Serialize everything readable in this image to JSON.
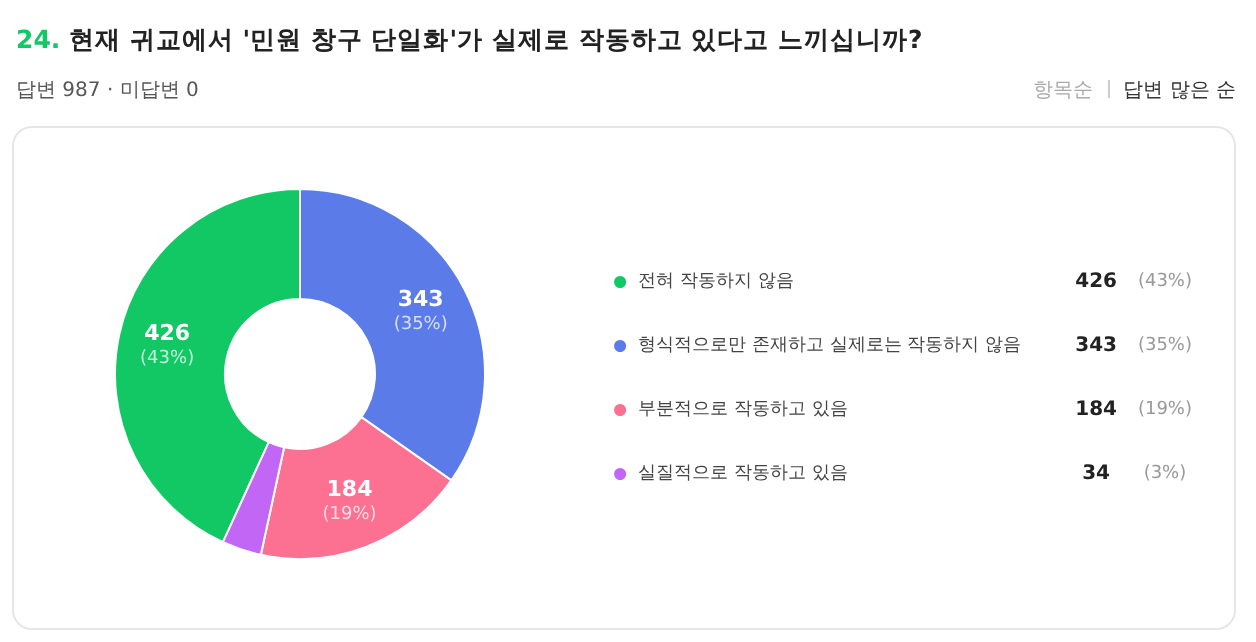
{
  "chart_data": {
    "type": "donut",
    "title": "24. 현재 귀교에서 '민원 창구 단일화'가 실제로 작동하고 있다고 느끼십니까?",
    "subtitle": "답변 987 · 미답변 0",
    "annotations": [
      "항목순",
      "답변 많은 순"
    ],
    "categories": [
      "전혀 작동하지 않음",
      "형식적으로만 존재하고 실제로는 작동하지 않음",
      "부분적으로 작동하고 있음",
      "실질적으로 작동하고 있음"
    ],
    "values": [
      426,
      343,
      184,
      34
    ],
    "value_labels": [
      "426 (43%)",
      "343 (35%)",
      "184 (19%)",
      "34 (3%)"
    ],
    "colors": [
      "#12c865",
      "#5a7be8",
      "#fc7092",
      "#c266f5"
    ],
    "legend": "right"
  }
}
